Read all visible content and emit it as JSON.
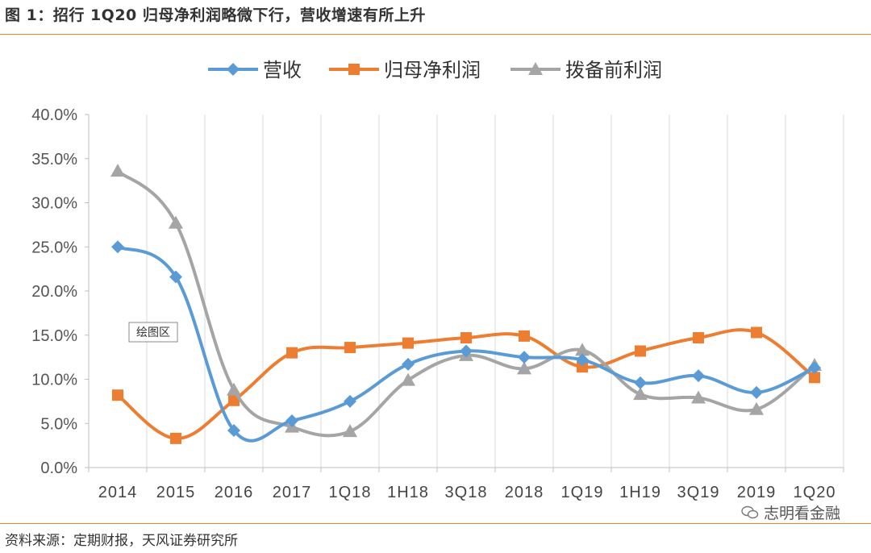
{
  "header": {
    "title": "图 1：招行 1Q20 归母净利润略微下行，营收增速有所上升"
  },
  "footer": {
    "source": "资料来源：定期财报，天风证券研究所",
    "watermark": "志明看金融"
  },
  "chart_data": {
    "type": "line",
    "categories": [
      "2014",
      "2015",
      "2016",
      "2017",
      "1Q18",
      "1H18",
      "3Q18",
      "2018",
      "1Q19",
      "1H19",
      "3Q19",
      "2019",
      "1Q20"
    ],
    "ylim": [
      0,
      0.4
    ],
    "yticks": [
      "0.0%",
      "5.0%",
      "10.0%",
      "15.0%",
      "20.0%",
      "25.0%",
      "30.0%",
      "35.0%",
      "40.0%"
    ],
    "grid": "vertical",
    "legend_position": "top",
    "annotation": "绘图区",
    "series": [
      {
        "name": "营收",
        "color": "#5b9bd5",
        "marker": "diamond",
        "values": [
          0.25,
          0.216,
          0.042,
          0.053,
          0.075,
          0.117,
          0.132,
          0.125,
          0.122,
          0.096,
          0.104,
          0.085,
          0.113
        ]
      },
      {
        "name": "归母净利润",
        "color": "#ed7d31",
        "marker": "square",
        "values": [
          0.082,
          0.033,
          0.076,
          0.13,
          0.136,
          0.141,
          0.147,
          0.149,
          0.114,
          0.132,
          0.147,
          0.153,
          0.102
        ]
      },
      {
        "name": "拨备前利润",
        "color": "#a5a5a5",
        "marker": "triangle",
        "values": [
          0.336,
          0.277,
          0.088,
          0.046,
          0.041,
          0.099,
          0.127,
          0.112,
          0.133,
          0.083,
          0.079,
          0.066,
          0.116
        ]
      }
    ]
  }
}
